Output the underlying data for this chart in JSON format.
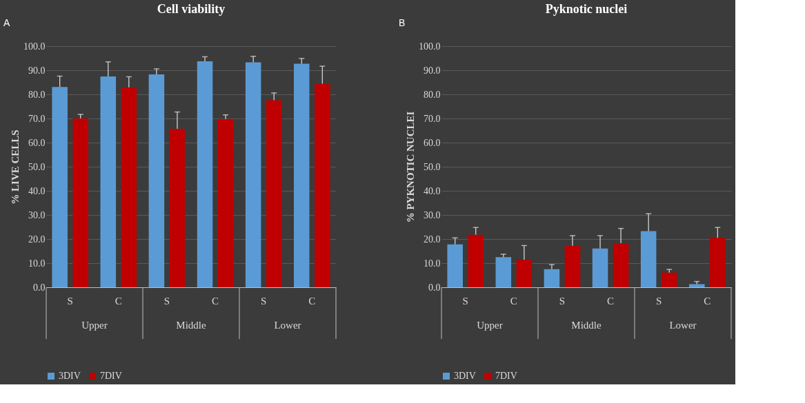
{
  "chart_data": [
    {
      "type": "bar",
      "title": "Cell viability",
      "ylabel": "% LIVE CELLS",
      "categories": [
        "S",
        "C",
        "S",
        "C",
        "S",
        "C"
      ],
      "annotations": [
        "A",
        "Upper",
        "Middle",
        "Lower"
      ],
      "ylim": [
        0,
        100
      ],
      "yticks": [
        {
          "value": 0,
          "label": "0.0"
        },
        {
          "value": 10,
          "label": "10.0"
        },
        {
          "value": 20,
          "label": "20.0"
        },
        {
          "value": 30,
          "label": "30.0"
        },
        {
          "value": 40,
          "label": "40.0"
        },
        {
          "value": 50,
          "label": "50.0"
        },
        {
          "value": 60,
          "label": "60.0"
        },
        {
          "value": 70,
          "label": "70.0"
        },
        {
          "value": 80,
          "label": "80.0"
        },
        {
          "value": 90,
          "label": "90.0"
        },
        {
          "value": 100,
          "label": "100.0"
        }
      ],
      "grid": "y",
      "legend": "bottom",
      "series": [
        {
          "name": "3DIV",
          "color": "#5b9bd5",
          "values": [
            83.1,
            87.4,
            88.3,
            93.7,
            93.3,
            92.7
          ],
          "errors": [
            [
              83.1,
              87.6
            ],
            [
              87.4,
              93.5
            ],
            [
              88.3,
              90.6
            ],
            [
              93.7,
              95.6
            ],
            [
              93.3,
              95.8
            ],
            [
              92.7,
              94.9
            ]
          ]
        },
        {
          "name": "7DIV",
          "color": "#c00000",
          "values": [
            70.0,
            82.9,
            65.7,
            69.8,
            77.6,
            84.4
          ],
          "errors": [
            [
              70.0,
              71.7
            ],
            [
              82.9,
              87.3
            ],
            [
              65.7,
              72.7
            ],
            [
              69.8,
              71.5
            ],
            [
              77.6,
              80.6
            ],
            [
              84.4,
              91.7
            ]
          ]
        }
      ]
    },
    {
      "type": "bar",
      "title": "Pyknotic nuclei",
      "ylabel": "% PYKNOTIC NUCLEI",
      "categories": [
        "S",
        "C",
        "S",
        "C",
        "S",
        "C"
      ],
      "annotations": [
        "B",
        "Upper",
        "Middle",
        "Lower"
      ],
      "ylim": [
        0,
        100
      ],
      "yticks": [
        {
          "value": 0,
          "label": "0.0"
        },
        {
          "value": 10,
          "label": "10.0"
        },
        {
          "value": 20,
          "label": "20.0"
        },
        {
          "value": 30,
          "label": "30.0"
        },
        {
          "value": 40,
          "label": "40.0"
        },
        {
          "value": 50,
          "label": "50.0"
        },
        {
          "value": 60,
          "label": "60.0"
        },
        {
          "value": 70,
          "label": "70.0"
        },
        {
          "value": 80,
          "label": "80.0"
        },
        {
          "value": 90,
          "label": "90.0"
        },
        {
          "value": 100,
          "label": "100.0"
        }
      ],
      "grid": "y",
      "legend": "bottom",
      "series": [
        {
          "name": "3DIV",
          "color": "#5b9bd5",
          "values": [
            17.8,
            12.5,
            7.5,
            16.1,
            23.3,
            1.3
          ],
          "errors": [
            [
              17.8,
              20.5
            ],
            [
              12.5,
              13.7
            ],
            [
              7.5,
              9.4
            ],
            [
              16.1,
              21.4
            ],
            [
              23.3,
              30.5
            ],
            [
              1.3,
              2.4
            ]
          ]
        },
        {
          "name": "7DIV",
          "color": "#c00000",
          "values": [
            21.8,
            11.4,
            17.2,
            18.3,
            6.1,
            20.5
          ],
          "errors": [
            [
              21.8,
              24.8
            ],
            [
              11.4,
              17.3
            ],
            [
              17.2,
              21.4
            ],
            [
              18.3,
              24.4
            ],
            [
              6.1,
              7.4
            ],
            [
              20.5,
              24.8
            ]
          ]
        }
      ]
    }
  ]
}
